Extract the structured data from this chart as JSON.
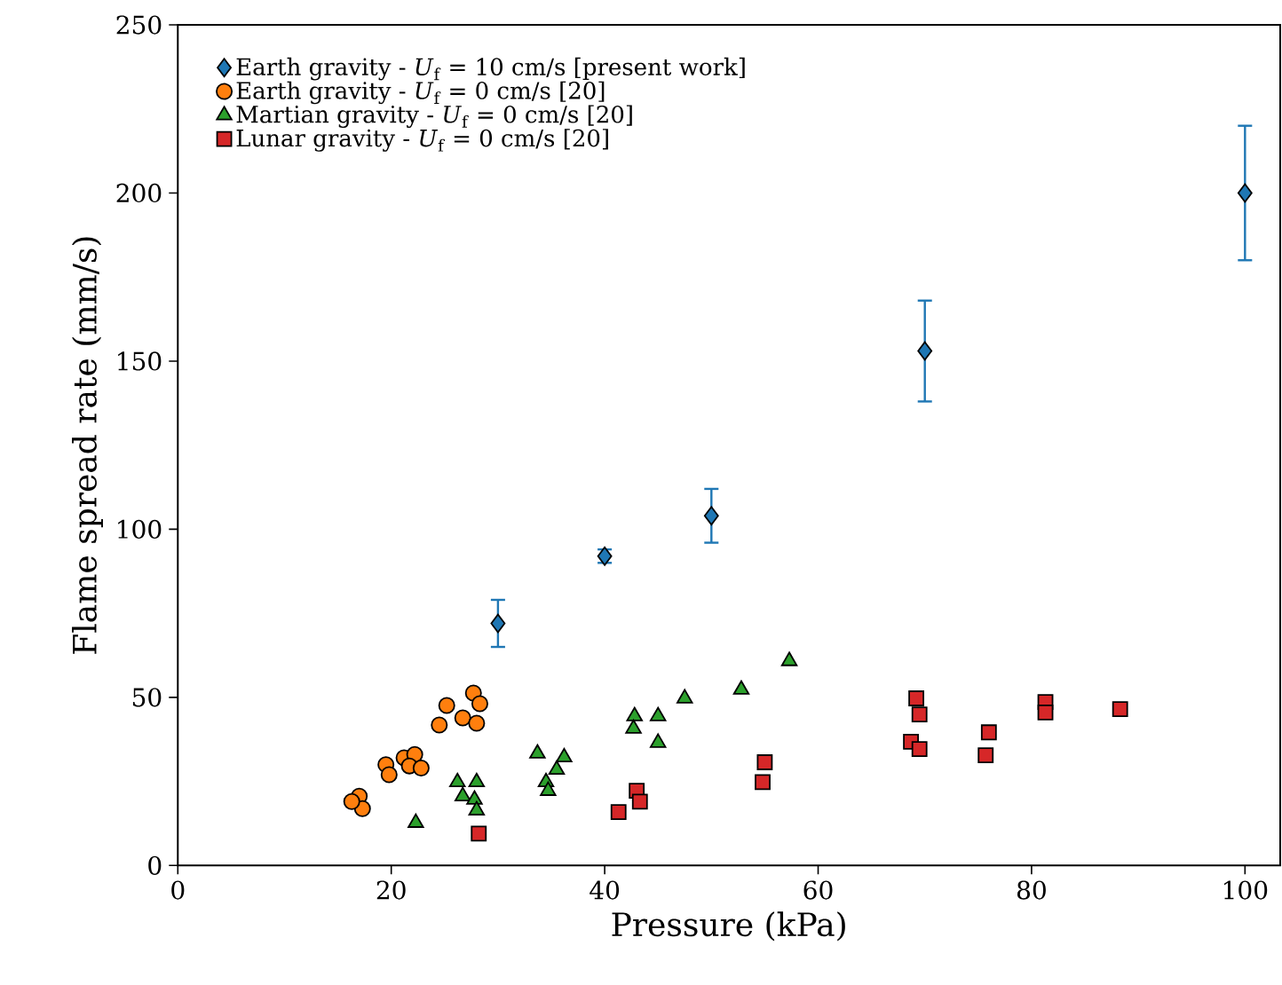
{
  "chart_data": {
    "type": "scatter",
    "xlabel": "Pressure (kPa)",
    "ylabel": "Flame spread rate (mm/s)",
    "xlim": [
      0,
      103.3
    ],
    "ylim": [
      0,
      250
    ],
    "xticks": [
      0,
      20,
      40,
      60,
      80,
      100
    ],
    "yticks": [
      0,
      50,
      100,
      150,
      200,
      250
    ],
    "grid": false,
    "legend": "top left",
    "series": [
      {
        "name": "Earth gravity - *U*$_{f}$ = 10 cm/s [present work]",
        "color": "#1f77b4",
        "marker": "diamond",
        "x": [
          30,
          40,
          50,
          70,
          100
        ],
        "values": [
          72,
          92,
          104,
          153,
          200
        ],
        "errors": [
          7,
          2,
          8,
          15,
          20
        ]
      },
      {
        "name": "Earth gravity - *U*$_{f}$ = 0 cm/s [20]",
        "color": "#ff7f0e",
        "marker": "circle",
        "x": [
          17,
          17.3,
          16.3,
          19.5,
          19.8,
          21.2,
          22.2,
          21.7,
          22.8,
          24.5,
          25.2,
          26.7,
          28,
          27.7,
          28.3
        ],
        "values": [
          20.6,
          16.9,
          19,
          30,
          27,
          32,
          33,
          29.6,
          29,
          41.8,
          47.6,
          43.9,
          42.3,
          51.3,
          48.1
        ]
      },
      {
        "name": "Martian gravity - *U*$_{f}$ = 0 cm/s [20]",
        "color": "#2ca02c",
        "marker": "triangle",
        "x": [
          22.3,
          26.2,
          28,
          26.7,
          27.8,
          28,
          33.7,
          36.2,
          35.5,
          34.5,
          34.7,
          42.8,
          42.7,
          45,
          45,
          47.5,
          52.8,
          57.3
        ],
        "values": [
          12.7,
          24.8,
          24.8,
          20.6,
          19.6,
          16.4,
          33.3,
          32.2,
          28.5,
          24.8,
          22.2,
          44.4,
          40.7,
          44.4,
          36.5,
          49.7,
          52.3,
          60.8
        ]
      },
      {
        "name": "Lunar gravity - *U*$_{f}$ = 0 cm/s [20]",
        "color": "#d62728",
        "marker": "square",
        "x": [
          28.2,
          41.3,
          43,
          43.3,
          55,
          54.8,
          69.2,
          69.5,
          68.7,
          69.5,
          76,
          75.7,
          81.3,
          81.3,
          88.3
        ],
        "values": [
          9.5,
          15.9,
          22.2,
          19,
          30.7,
          24.8,
          49.7,
          44.9,
          36.8,
          34.6,
          39.6,
          32.8,
          48.6,
          45.5,
          46.5
        ]
      }
    ]
  }
}
